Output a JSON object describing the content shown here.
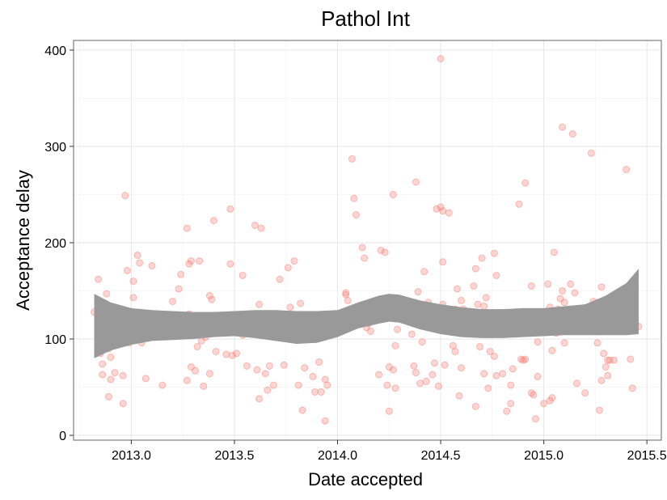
{
  "chart_data": {
    "type": "scatter",
    "title": "Pathol Int",
    "xlabel": "Date accepted",
    "ylabel": "Acceptance delay",
    "xlim": [
      2012.72,
      2015.57
    ],
    "ylim": [
      -5,
      410
    ],
    "x_ticks": [
      2013.0,
      2013.5,
      2014.0,
      2014.5,
      2015.0,
      2015.5
    ],
    "x_tick_labels": [
      "2013.0",
      "2013.5",
      "2014.0",
      "2014.5",
      "2015.0",
      "2015.5"
    ],
    "y_ticks": [
      0,
      100,
      200,
      300,
      400
    ],
    "y_tick_labels": [
      "0",
      "100",
      "200",
      "300",
      "400"
    ],
    "grid": true,
    "point_color": "#f8766d",
    "band_color": "#999999",
    "points": [
      [
        2012.82,
        128
      ],
      [
        2012.84,
        162
      ],
      [
        2012.85,
        85
      ],
      [
        2012.86,
        63
      ],
      [
        2012.86,
        74
      ],
      [
        2012.88,
        147
      ],
      [
        2012.89,
        90
      ],
      [
        2012.89,
        40
      ],
      [
        2012.9,
        81
      ],
      [
        2012.9,
        58
      ],
      [
        2012.92,
        65
      ],
      [
        2012.94,
        110
      ],
      [
        2012.96,
        33
      ],
      [
        2012.96,
        62
      ],
      [
        2012.97,
        249
      ],
      [
        2012.98,
        171
      ],
      [
        2012.99,
        96
      ],
      [
        2013.01,
        160
      ],
      [
        2013.01,
        143
      ],
      [
        2013.03,
        187
      ],
      [
        2013.04,
        179
      ],
      [
        2013.04,
        122
      ],
      [
        2013.05,
        96
      ],
      [
        2013.07,
        59
      ],
      [
        2013.09,
        116
      ],
      [
        2013.09,
        105
      ],
      [
        2013.1,
        176
      ],
      [
        2013.15,
        52
      ],
      [
        2013.2,
        139
      ],
      [
        2013.23,
        152
      ],
      [
        2013.24,
        167
      ],
      [
        2013.25,
        119
      ],
      [
        2013.27,
        57
      ],
      [
        2013.27,
        215
      ],
      [
        2013.28,
        178
      ],
      [
        2013.28,
        126
      ],
      [
        2013.29,
        181
      ],
      [
        2013.29,
        71
      ],
      [
        2013.3,
        107
      ],
      [
        2013.31,
        67
      ],
      [
        2013.32,
        92
      ],
      [
        2013.33,
        181
      ],
      [
        2013.34,
        98
      ],
      [
        2013.35,
        51
      ],
      [
        2013.36,
        102
      ],
      [
        2013.38,
        64
      ],
      [
        2013.38,
        145
      ],
      [
        2013.39,
        141
      ],
      [
        2013.4,
        223
      ],
      [
        2013.41,
        87
      ],
      [
        2013.43,
        110
      ],
      [
        2013.46,
        84
      ],
      [
        2013.48,
        235
      ],
      [
        2013.48,
        178
      ],
      [
        2013.49,
        83
      ],
      [
        2013.51,
        85
      ],
      [
        2013.54,
        166
      ],
      [
        2013.54,
        104
      ],
      [
        2013.56,
        72
      ],
      [
        2013.6,
        218
      ],
      [
        2013.61,
        68
      ],
      [
        2013.62,
        38
      ],
      [
        2013.62,
        136
      ],
      [
        2013.63,
        215
      ],
      [
        2013.65,
        64
      ],
      [
        2013.66,
        47
      ],
      [
        2013.67,
        72
      ],
      [
        2013.69,
        52
      ],
      [
        2013.72,
        162
      ],
      [
        2013.74,
        73
      ],
      [
        2013.76,
        174
      ],
      [
        2013.77,
        133
      ],
      [
        2013.78,
        119
      ],
      [
        2013.79,
        181
      ],
      [
        2013.81,
        52
      ],
      [
        2013.82,
        137
      ],
      [
        2013.83,
        26
      ],
      [
        2013.84,
        70
      ],
      [
        2013.87,
        104
      ],
      [
        2013.88,
        61
      ],
      [
        2013.89,
        45
      ],
      [
        2013.89,
        107
      ],
      [
        2013.91,
        76
      ],
      [
        2013.92,
        45
      ],
      [
        2013.94,
        15
      ],
      [
        2013.94,
        58
      ],
      [
        2013.95,
        52
      ],
      [
        2013.97,
        125
      ],
      [
        2014.04,
        146
      ],
      [
        2014.04,
        148
      ],
      [
        2014.05,
        140
      ],
      [
        2014.06,
        118
      ],
      [
        2014.07,
        287
      ],
      [
        2014.08,
        246
      ],
      [
        2014.09,
        229
      ],
      [
        2014.12,
        195
      ],
      [
        2014.13,
        184
      ],
      [
        2014.14,
        112
      ],
      [
        2014.15,
        116
      ],
      [
        2014.16,
        108
      ],
      [
        2014.2,
        63
      ],
      [
        2014.21,
        192
      ],
      [
        2014.23,
        190
      ],
      [
        2014.23,
        128
      ],
      [
        2014.24,
        52
      ],
      [
        2014.25,
        25
      ],
      [
        2014.25,
        71
      ],
      [
        2014.27,
        68
      ],
      [
        2014.27,
        250
      ],
      [
        2014.28,
        49
      ],
      [
        2014.28,
        93
      ],
      [
        2014.29,
        110
      ],
      [
        2014.36,
        105
      ],
      [
        2014.37,
        72
      ],
      [
        2014.38,
        263
      ],
      [
        2014.38,
        65
      ],
      [
        2014.39,
        149
      ],
      [
        2014.4,
        54
      ],
      [
        2014.41,
        97
      ],
      [
        2014.42,
        170
      ],
      [
        2014.43,
        56
      ],
      [
        2014.44,
        138
      ],
      [
        2014.46,
        63
      ],
      [
        2014.47,
        75
      ],
      [
        2014.48,
        235
      ],
      [
        2014.49,
        51
      ],
      [
        2014.5,
        391
      ],
      [
        2014.5,
        237
      ],
      [
        2014.51,
        233
      ],
      [
        2014.51,
        180
      ],
      [
        2014.51,
        136
      ],
      [
        2014.52,
        73
      ],
      [
        2014.54,
        231
      ],
      [
        2014.56,
        93
      ],
      [
        2014.57,
        131
      ],
      [
        2014.57,
        87
      ],
      [
        2014.58,
        152
      ],
      [
        2014.59,
        110
      ],
      [
        2014.59,
        41
      ],
      [
        2014.6,
        140
      ],
      [
        2014.6,
        70
      ],
      [
        2014.61,
        131
      ],
      [
        2014.66,
        155
      ],
      [
        2014.67,
        30
      ],
      [
        2014.67,
        173
      ],
      [
        2014.68,
        136
      ],
      [
        2014.68,
        116
      ],
      [
        2014.69,
        92
      ],
      [
        2014.7,
        184
      ],
      [
        2014.71,
        64
      ],
      [
        2014.71,
        134
      ],
      [
        2014.72,
        143
      ],
      [
        2014.73,
        49
      ],
      [
        2014.74,
        87
      ],
      [
        2014.76,
        189
      ],
      [
        2014.76,
        82
      ],
      [
        2014.77,
        166
      ],
      [
        2014.77,
        62
      ],
      [
        2014.8,
        64
      ],
      [
        2014.82,
        25
      ],
      [
        2014.84,
        33
      ],
      [
        2014.84,
        52
      ],
      [
        2014.85,
        69
      ],
      [
        2014.87,
        112
      ],
      [
        2014.88,
        240
      ],
      [
        2014.89,
        79
      ],
      [
        2014.9,
        78
      ],
      [
        2014.91,
        262
      ],
      [
        2014.91,
        79
      ],
      [
        2014.93,
        112
      ],
      [
        2014.94,
        44
      ],
      [
        2014.94,
        155
      ],
      [
        2014.95,
        42
      ],
      [
        2014.96,
        17
      ],
      [
        2014.97,
        97
      ],
      [
        2014.97,
        61
      ],
      [
        2015.0,
        121
      ],
      [
        2015.0,
        33
      ],
      [
        2015.01,
        112
      ],
      [
        2015.02,
        157
      ],
      [
        2015.03,
        133
      ],
      [
        2015.03,
        36
      ],
      [
        2015.04,
        88
      ],
      [
        2015.04,
        39
      ],
      [
        2015.05,
        190
      ],
      [
        2015.06,
        106
      ],
      [
        2015.07,
        131
      ],
      [
        2015.08,
        142
      ],
      [
        2015.09,
        320
      ],
      [
        2015.09,
        150
      ],
      [
        2015.1,
        138
      ],
      [
        2015.1,
        96
      ],
      [
        2015.13,
        157
      ],
      [
        2015.14,
        313
      ],
      [
        2015.15,
        148
      ],
      [
        2015.16,
        54
      ],
      [
        2015.16,
        127
      ],
      [
        2015.2,
        44
      ],
      [
        2015.23,
        293
      ],
      [
        2015.24,
        139
      ],
      [
        2015.25,
        120
      ],
      [
        2015.26,
        96
      ],
      [
        2015.27,
        26
      ],
      [
        2015.28,
        154
      ],
      [
        2015.28,
        57
      ],
      [
        2015.29,
        85
      ],
      [
        2015.3,
        71
      ],
      [
        2015.31,
        62
      ],
      [
        2015.31,
        78
      ],
      [
        2015.32,
        78
      ],
      [
        2015.34,
        78
      ],
      [
        2015.38,
        142
      ],
      [
        2015.4,
        276
      ],
      [
        2015.4,
        127
      ],
      [
        2015.41,
        121
      ],
      [
        2015.42,
        79
      ],
      [
        2015.43,
        49
      ],
      [
        2015.44,
        115
      ],
      [
        2015.46,
        113
      ]
    ],
    "band_upper": [
      [
        2012.82,
        147
      ],
      [
        2012.9,
        138
      ],
      [
        2013.0,
        132
      ],
      [
        2013.1,
        130
      ],
      [
        2013.2,
        129
      ],
      [
        2013.3,
        128
      ],
      [
        2013.4,
        128
      ],
      [
        2013.5,
        129
      ],
      [
        2013.6,
        130
      ],
      [
        2013.7,
        130
      ],
      [
        2013.8,
        129
      ],
      [
        2013.9,
        129
      ],
      [
        2014.0,
        130
      ],
      [
        2014.1,
        138
      ],
      [
        2014.2,
        145
      ],
      [
        2014.25,
        147
      ],
      [
        2014.3,
        146
      ],
      [
        2014.4,
        140
      ],
      [
        2014.5,
        136
      ],
      [
        2014.6,
        133
      ],
      [
        2014.7,
        131
      ],
      [
        2014.8,
        131
      ],
      [
        2014.9,
        132
      ],
      [
        2015.0,
        132
      ],
      [
        2015.1,
        134
      ],
      [
        2015.2,
        136
      ],
      [
        2015.3,
        145
      ],
      [
        2015.4,
        158
      ],
      [
        2015.46,
        173
      ]
    ],
    "band_lower": [
      [
        2012.82,
        80
      ],
      [
        2012.9,
        88
      ],
      [
        2013.0,
        94
      ],
      [
        2013.1,
        98
      ],
      [
        2013.2,
        99
      ],
      [
        2013.3,
        100
      ],
      [
        2013.4,
        102
      ],
      [
        2013.5,
        103
      ],
      [
        2013.6,
        101
      ],
      [
        2013.7,
        98
      ],
      [
        2013.8,
        95
      ],
      [
        2013.9,
        96
      ],
      [
        2014.0,
        102
      ],
      [
        2014.1,
        111
      ],
      [
        2014.2,
        116
      ],
      [
        2014.25,
        118
      ],
      [
        2014.3,
        117
      ],
      [
        2014.4,
        110
      ],
      [
        2014.5,
        105
      ],
      [
        2014.6,
        102
      ],
      [
        2014.7,
        101
      ],
      [
        2014.8,
        101
      ],
      [
        2014.9,
        102
      ],
      [
        2015.0,
        103
      ],
      [
        2015.1,
        104
      ],
      [
        2015.2,
        104
      ],
      [
        2015.3,
        104
      ],
      [
        2015.4,
        104
      ],
      [
        2015.46,
        105
      ]
    ]
  }
}
